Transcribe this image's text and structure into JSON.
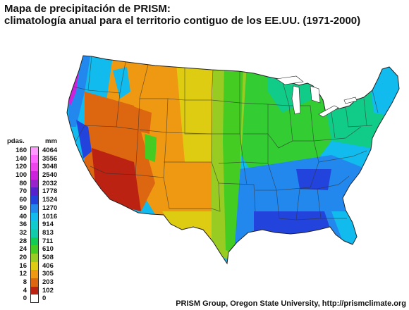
{
  "title": {
    "line1": "Mapa de precipitación de PRISM:",
    "line2": "climatología anual para el territorio contiguo de los EE.UU. (1971-2000)"
  },
  "legend": {
    "unit_in": "pdas.",
    "unit_mm": "mm",
    "entries": [
      {
        "in": "160",
        "mm": "4064",
        "color": "#ff99ff"
      },
      {
        "in": "140",
        "mm": "3556",
        "color": "#ff66ff"
      },
      {
        "in": "120",
        "mm": "3048",
        "color": "#ee44ee"
      },
      {
        "in": "100",
        "mm": "2540",
        "color": "#cc22dd"
      },
      {
        "in": "80",
        "mm": "2032",
        "color": "#9922cc"
      },
      {
        "in": "70",
        "mm": "1778",
        "color": "#5522cc"
      },
      {
        "in": "60",
        "mm": "1524",
        "color": "#2244dd"
      },
      {
        "in": "50",
        "mm": "1270",
        "color": "#2288ee"
      },
      {
        "in": "40",
        "mm": "1016",
        "color": "#11bbee"
      },
      {
        "in": "36",
        "mm": "914",
        "color": "#11cccc"
      },
      {
        "in": "32",
        "mm": "813",
        "color": "#11ccaa"
      },
      {
        "in": "28",
        "mm": "711",
        "color": "#11cc55"
      },
      {
        "in": "24",
        "mm": "610",
        "color": "#44cc22"
      },
      {
        "in": "20",
        "mm": "508",
        "color": "#99cc22"
      },
      {
        "in": "16",
        "mm": "406",
        "color": "#ddcc11"
      },
      {
        "in": "12",
        "mm": "305",
        "color": "#ee9911"
      },
      {
        "in": "8",
        "mm": "203",
        "color": "#dd6611"
      },
      {
        "in": "4",
        "mm": "102",
        "color": "#bb2211"
      },
      {
        "in": "0",
        "mm": "0",
        "color": "#ffffff"
      }
    ]
  },
  "credit": "PRISM Group, Oregon State University, http://prismclimate.org",
  "map": {
    "regions": [
      {
        "name": "pacific-northwest-coast",
        "level_mm": 3048
      },
      {
        "name": "northern-rockies",
        "level_mm": 610
      },
      {
        "name": "great-basin",
        "level_mm": 203
      },
      {
        "name": "desert-southwest",
        "level_mm": 102
      },
      {
        "name": "southern-rockies",
        "level_mm": 406
      },
      {
        "name": "high-plains",
        "level_mm": 406
      },
      {
        "name": "central-plains",
        "level_mm": 711
      },
      {
        "name": "midwest",
        "level_mm": 914
      },
      {
        "name": "northeast",
        "level_mm": 1016
      },
      {
        "name": "southeast",
        "level_mm": 1270
      },
      {
        "name": "gulf-coast",
        "level_mm": 1524
      },
      {
        "name": "florida",
        "level_mm": 1270
      }
    ]
  }
}
